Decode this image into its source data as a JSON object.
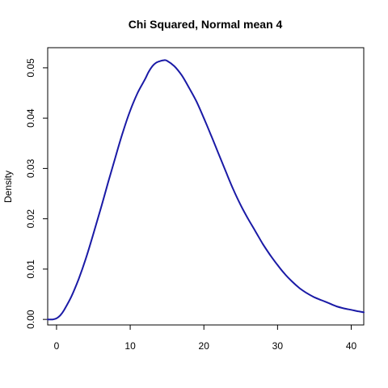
{
  "chart_data": {
    "type": "line",
    "title": "Chi Squared, Normal mean 4",
    "xlabel": "",
    "ylabel": "Density",
    "xlim": [
      -1.2,
      41.7
    ],
    "ylim": [
      -0.0011,
      0.054
    ],
    "xticks": [
      0,
      10,
      20,
      30,
      40
    ],
    "xtick_labels": [
      "0",
      "10",
      "20",
      "30",
      "40"
    ],
    "yticks": [
      0.0,
      0.01,
      0.02,
      0.03,
      0.04,
      0.05
    ],
    "ytick_labels": [
      "0.00",
      "0.01",
      "0.02",
      "0.03",
      "0.04",
      "0.05"
    ],
    "grid": false,
    "line_color": "#1a1aa6",
    "series": [
      {
        "x": [
          -1.2,
          -0.5,
          0,
          0.5,
          1,
          2,
          3,
          4,
          5,
          6,
          7,
          8,
          9,
          10,
          11,
          12,
          12.5,
          13,
          13.5,
          14,
          14.5,
          15,
          16,
          17,
          18,
          19,
          20,
          21,
          22,
          23,
          24,
          25,
          26,
          27,
          28,
          29,
          30,
          31,
          32,
          33,
          34,
          35,
          36,
          37,
          38,
          39,
          40,
          41,
          41.7
        ],
        "y": [
          0.0,
          0.0,
          0.0002,
          0.0008,
          0.0018,
          0.0045,
          0.008,
          0.0122,
          0.017,
          0.022,
          0.0272,
          0.0323,
          0.0372,
          0.0415,
          0.045,
          0.0477,
          0.0492,
          0.0503,
          0.051,
          0.0513,
          0.0515,
          0.0514,
          0.0503,
          0.0485,
          0.046,
          0.0433,
          0.04,
          0.0365,
          0.0329,
          0.0293,
          0.0258,
          0.0227,
          0.02,
          0.0175,
          0.015,
          0.0128,
          0.0108,
          0.009,
          0.0075,
          0.0062,
          0.0052,
          0.0044,
          0.0038,
          0.0032,
          0.0026,
          0.0022,
          0.0019,
          0.0016,
          0.0014
        ]
      }
    ]
  }
}
